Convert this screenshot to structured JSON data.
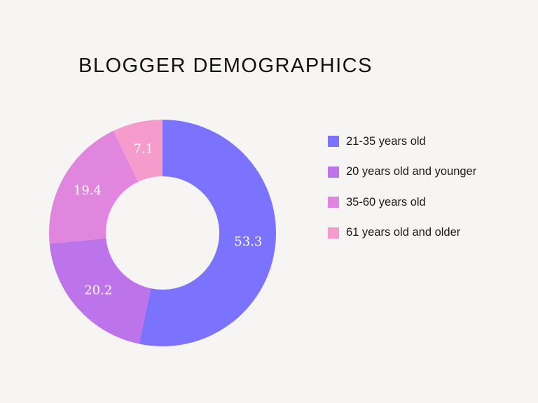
{
  "chart_data": {
    "type": "pie",
    "title": "BLOGGER DEMOGRAPHICS",
    "donut": true,
    "legend_position": "right",
    "categories": [
      "21-35 years old",
      "20 years old and younger",
      "35-60 years old",
      "61 years old and older"
    ],
    "values": [
      53.3,
      20.2,
      19.4,
      7.1
    ],
    "data_labels": [
      "53.3",
      "20.2",
      "19.4",
      "7.1"
    ],
    "colors": [
      "#7b73fe",
      "#bd74ea",
      "#e186de",
      "#f59ccd"
    ]
  }
}
